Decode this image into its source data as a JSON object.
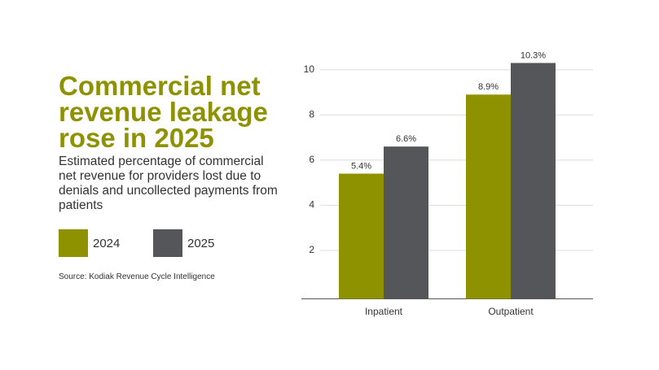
{
  "chart_data": {
    "type": "bar",
    "title": "Commercial net revenue leakage rose in 2025",
    "subtitle": "Estimated percentage of commercial net revenue for providers lost due to denials and uncollected payments from patients",
    "source": "Source: Kodiak Revenue Cycle Intelligence",
    "categories": [
      "Inpatient",
      "Outpatient"
    ],
    "series": [
      {
        "name": "2024",
        "color": "#8f9200",
        "values": [
          5.4,
          8.9
        ],
        "value_labels": [
          "5.4%",
          "8.9%"
        ]
      },
      {
        "name": "2025",
        "color": "#54565a",
        "values": [
          6.6,
          10.3
        ],
        "value_labels": [
          "6.6%",
          "10.3%"
        ]
      }
    ],
    "ylim": [
      0,
      11
    ],
    "yticks": [
      2,
      4,
      6,
      8,
      10
    ],
    "grid": true
  }
}
